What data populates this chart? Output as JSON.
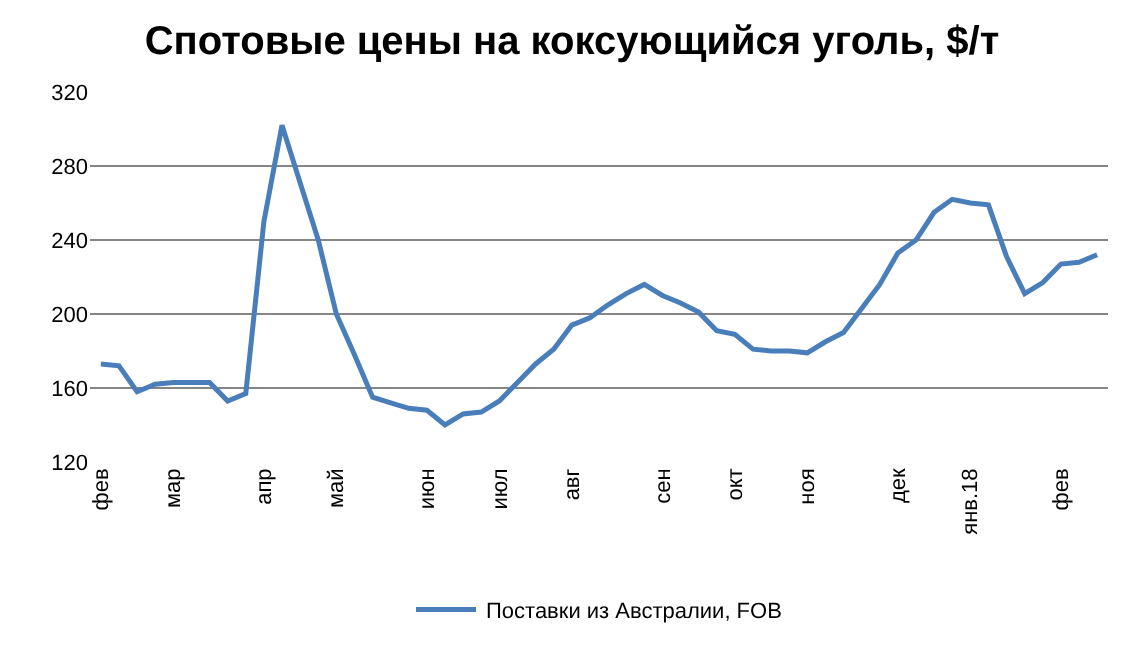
{
  "chart_data": {
    "type": "line",
    "title": "Спотовые цены на коксующийся уголь, $/т",
    "categories": [
      "фев",
      null,
      null,
      null,
      "мар",
      null,
      null,
      null,
      null,
      "апр",
      null,
      null,
      null,
      "май",
      null,
      null,
      null,
      null,
      "июн",
      null,
      null,
      null,
      "июл",
      null,
      null,
      null,
      "авг",
      null,
      null,
      null,
      null,
      "сен",
      null,
      null,
      null,
      "окт",
      null,
      null,
      null,
      "ноя",
      null,
      null,
      null,
      null,
      "дек",
      null,
      null,
      null,
      "янв.18",
      null,
      null,
      null,
      null,
      "фев",
      null,
      null
    ],
    "series": [
      {
        "name": "Поставки из Австралии, FOB",
        "color": "#4a7ebb",
        "values": [
          173,
          172,
          158,
          162,
          163,
          163,
          163,
          153,
          157,
          250,
          302,
          271,
          240,
          200,
          178,
          155,
          152,
          149,
          148,
          140,
          146,
          147,
          153,
          163,
          173,
          181,
          194,
          198,
          205,
          211,
          216,
          210,
          206,
          201,
          191,
          189,
          181,
          180,
          180,
          179,
          185,
          190,
          203,
          216,
          233,
          240,
          255,
          262,
          260,
          259,
          231,
          211,
          217,
          227,
          228,
          232
        ]
      }
    ],
    "ylim": [
      120,
      320
    ],
    "yticks": [
      120,
      160,
      200,
      240,
      280,
      320
    ],
    "grid": "y",
    "legend": "bottom",
    "marker": "none",
    "line_style": "solid"
  }
}
